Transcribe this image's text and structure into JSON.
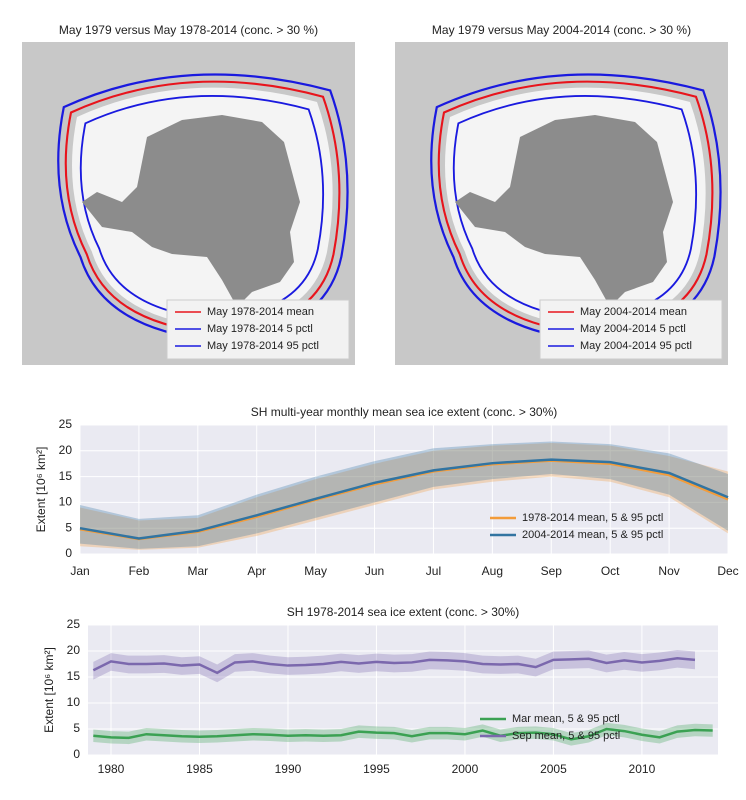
{
  "chart_data": [
    {
      "type": "map",
      "title": "May 1979 versus May 1978-2014 (conc. > 30 %)",
      "series": [
        {
          "name": "May 1978-2014 mean",
          "color": "#e8141c"
        },
        {
          "name": "May 1978-2014 5 pctl",
          "color": "#1a1adf"
        },
        {
          "name": "May 1978-2014 95 pctl",
          "color": "#1a1adf"
        }
      ],
      "legend": "lower right"
    },
    {
      "type": "map",
      "title": "May 1979 versus May 2004-2014 (conc. > 30 %)",
      "series": [
        {
          "name": "May 2004-2014 mean",
          "color": "#e8141c"
        },
        {
          "name": "May 2004-2014 5 pctl",
          "color": "#1a1adf"
        },
        {
          "name": "May 2004-2014 95 pctl",
          "color": "#1a1adf"
        }
      ],
      "legend": "lower right"
    },
    {
      "type": "line",
      "title": "SH multi-year monthly mean sea ice extent (conc. > 30%)",
      "ylabel": "Extent [10⁶ km²]",
      "categories": [
        "Jan",
        "Feb",
        "Mar",
        "Apr",
        "May",
        "Jun",
        "Jul",
        "Aug",
        "Sep",
        "Oct",
        "Nov",
        "Dec"
      ],
      "series": [
        {
          "name": "1978-2014 mean, 5 & 95 pctl",
          "color": "#f39c3a",
          "values": [
            4.8,
            2.9,
            4.3,
            7.2,
            10.5,
            13.5,
            16.0,
            17.4,
            18.1,
            17.5,
            15.3,
            10.6
          ],
          "low": [
            1.5,
            0.8,
            1.2,
            3.5,
            6.5,
            9.5,
            12.5,
            14.0,
            15.0,
            14.0,
            11.0,
            4.0
          ],
          "high": [
            9.0,
            6.5,
            7.0,
            11.0,
            14.5,
            17.5,
            20.0,
            21.0,
            21.5,
            21.0,
            19.0,
            16.0
          ]
        },
        {
          "name": "2004-2014 mean, 5 & 95 pctl",
          "color": "#3274a1",
          "values": [
            5.0,
            3.0,
            4.5,
            7.5,
            10.7,
            13.8,
            16.2,
            17.6,
            18.3,
            17.8,
            15.7,
            11.0
          ],
          "low": [
            2.0,
            1.0,
            1.5,
            4.0,
            7.0,
            10.0,
            13.0,
            14.5,
            15.5,
            14.5,
            11.5,
            4.5
          ],
          "high": [
            9.5,
            6.8,
            7.5,
            11.5,
            15.0,
            18.0,
            20.5,
            21.3,
            21.8,
            21.3,
            19.5,
            15.5
          ]
        }
      ],
      "ylim": [
        0,
        25
      ],
      "yticks": [
        0,
        5,
        10,
        15,
        20,
        25
      ],
      "grid": true,
      "legend": "lower right"
    },
    {
      "type": "line",
      "title": "SH 1978-2014 sea ice extent (conc. > 30%)",
      "ylabel": "Extent [10⁶ km²]",
      "x": [
        1979,
        1980,
        1981,
        1982,
        1983,
        1984,
        1985,
        1986,
        1987,
        1988,
        1989,
        1990,
        1991,
        1992,
        1993,
        1994,
        1995,
        1996,
        1997,
        1998,
        1999,
        2000,
        2001,
        2002,
        2003,
        2004,
        2005,
        2006,
        2007,
        2008,
        2009,
        2010,
        2011,
        2012,
        2013,
        2014
      ],
      "series": [
        {
          "name": "Mar mean, 5 & 95 pctl",
          "color": "#3ba153",
          "values": [
            3.7,
            3.4,
            3.3,
            4.0,
            3.8,
            3.6,
            3.5,
            3.6,
            3.8,
            4.0,
            3.9,
            3.7,
            3.8,
            3.7,
            3.8,
            4.5,
            4.3,
            4.2,
            3.6,
            4.2,
            4.2,
            4.0,
            4.7,
            3.7,
            4.2,
            4.3,
            4.0,
            3.0,
            3.6,
            5.0,
            4.6,
            3.9,
            3.4,
            4.5,
            4.8,
            4.7
          ],
          "low": [
            2.5,
            2.2,
            2.1,
            2.8,
            2.6,
            2.4,
            2.3,
            2.4,
            2.6,
            2.8,
            2.7,
            2.5,
            2.6,
            2.5,
            2.6,
            3.3,
            3.1,
            3.0,
            2.4,
            3.0,
            3.0,
            2.8,
            3.5,
            2.5,
            3.0,
            3.1,
            2.8,
            1.8,
            2.4,
            3.8,
            3.4,
            2.7,
            2.2,
            3.3,
            3.6,
            3.5
          ],
          "high": [
            4.9,
            4.6,
            4.5,
            5.2,
            5.0,
            4.8,
            4.7,
            4.8,
            5.0,
            5.2,
            5.1,
            4.9,
            5.0,
            4.9,
            5.0,
            5.7,
            5.5,
            5.4,
            4.8,
            5.4,
            5.4,
            5.2,
            5.9,
            4.9,
            5.4,
            5.5,
            5.2,
            4.2,
            4.8,
            6.2,
            5.8,
            5.1,
            4.6,
            5.7,
            6.0,
            5.9
          ]
        },
        {
          "name": "Sep mean, 5 & 95 pctl",
          "color": "#7b68ad",
          "values": [
            16.3,
            18.0,
            17.5,
            17.5,
            17.6,
            17.2,
            17.4,
            15.8,
            17.8,
            18.0,
            17.5,
            17.2,
            17.3,
            17.5,
            17.9,
            17.6,
            17.9,
            17.7,
            17.8,
            18.3,
            18.2,
            18.0,
            17.5,
            17.4,
            17.5,
            16.9,
            18.3,
            18.4,
            18.5,
            17.7,
            18.2,
            17.8,
            18.1,
            18.6,
            18.3,
            null
          ],
          "low": [
            14.5,
            16.2,
            15.7,
            15.7,
            15.8,
            15.4,
            15.6,
            14.0,
            16.0,
            16.2,
            15.7,
            15.4,
            15.5,
            15.7,
            16.1,
            15.8,
            16.1,
            15.9,
            16.0,
            16.5,
            16.4,
            16.2,
            15.7,
            15.6,
            15.7,
            15.1,
            16.5,
            16.6,
            16.7,
            15.9,
            16.4,
            16.0,
            16.3,
            16.8,
            16.5,
            null
          ],
          "high": [
            17.9,
            19.6,
            19.1,
            19.1,
            19.2,
            18.8,
            19.0,
            17.4,
            19.4,
            19.6,
            19.1,
            18.8,
            18.9,
            19.1,
            19.5,
            19.2,
            19.5,
            19.3,
            19.4,
            19.9,
            19.8,
            19.6,
            19.1,
            19.0,
            19.1,
            18.5,
            19.9,
            20.0,
            20.1,
            19.3,
            19.8,
            19.4,
            19.7,
            20.2,
            19.9,
            null
          ]
        }
      ],
      "xlim": [
        1978.7,
        2014.3
      ],
      "xticks": [
        1980,
        1985,
        1990,
        1995,
        2000,
        2005,
        2010
      ],
      "ylim": [
        0,
        25
      ],
      "yticks": [
        0,
        5,
        10,
        15,
        20,
        25
      ],
      "grid": true,
      "legend": "lower right"
    }
  ]
}
